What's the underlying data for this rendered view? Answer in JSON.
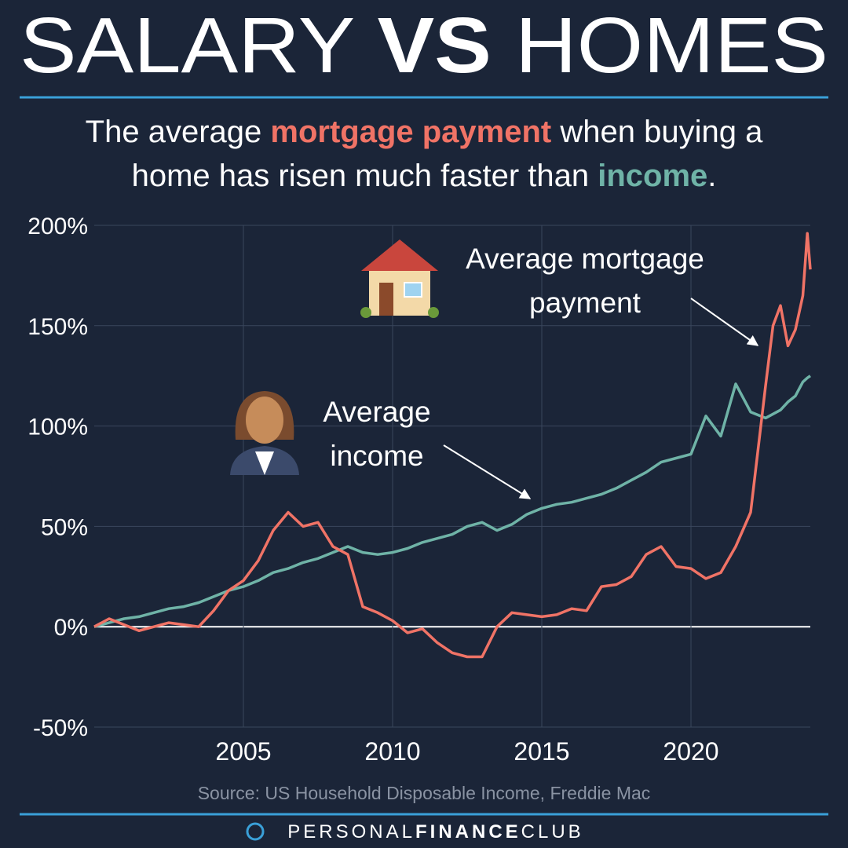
{
  "chart_data": {
    "type": "line",
    "title": [
      "SALARY",
      "VS",
      "HOMES"
    ],
    "subtitle": [
      {
        "text": "The average ",
        "color": "#ffffff"
      },
      {
        "text": "mortgage payment",
        "color": "#f07366"
      },
      {
        "text": " when buying a home has risen much faster than ",
        "color": "#ffffff"
      },
      {
        "text": "income",
        "color": "#6fb3a7"
      },
      {
        "text": ".",
        "color": "#ffffff"
      }
    ],
    "annotations": [
      "Average mortgage payment",
      "Average income"
    ],
    "source": "Source: US Household Disposable Income, Freddie Mac",
    "footer": [
      "PERSONAL",
      "FINANCE",
      "CLUB"
    ],
    "x": [
      2000,
      2000.5,
      2001,
      2001.5,
      2002,
      2002.5,
      2003,
      2003.5,
      2004,
      2004.5,
      2005,
      2005.5,
      2006,
      2006.5,
      2007,
      2007.5,
      2008,
      2008.5,
      2009,
      2009.5,
      2010,
      2010.5,
      2011,
      2011.5,
      2012,
      2012.5,
      2013,
      2013.5,
      2014,
      2014.5,
      2015,
      2015.5,
      2016,
      2016.5,
      2017,
      2017.5,
      2018,
      2018.5,
      2019,
      2019.5,
      2020,
      2020.5,
      2021,
      2021.5,
      2022,
      2022.5,
      2022.75,
      2023,
      2023.25,
      2023.5,
      2023.75,
      2023.9,
      2024
    ],
    "series": [
      {
        "name": "Average mortgage payment",
        "color": "#f07366",
        "values": [
          0,
          4,
          1,
          -2,
          0,
          2,
          1,
          0,
          8,
          18,
          23,
          33,
          48,
          57,
          50,
          52,
          40,
          36,
          10,
          7,
          3,
          -3,
          -1,
          -8,
          -13,
          -15,
          -15,
          0,
          7,
          6,
          5,
          6,
          9,
          8,
          20,
          21,
          25,
          36,
          40,
          30,
          29,
          24,
          27,
          40,
          57,
          120,
          150,
          160,
          140,
          148,
          165,
          196,
          178
        ]
      },
      {
        "name": "Average income",
        "color": "#6fb3a7",
        "values": [
          0,
          2,
          4,
          5,
          7,
          9,
          10,
          12,
          15,
          18,
          20,
          23,
          27,
          29,
          32,
          34,
          37,
          40,
          37,
          36,
          37,
          39,
          42,
          44,
          46,
          50,
          52,
          48,
          51,
          56,
          59,
          61,
          62,
          64,
          66,
          69,
          73,
          77,
          82,
          84,
          86,
          105,
          95,
          121,
          107,
          104,
          106,
          108,
          112,
          115,
          122,
          124,
          125
        ]
      }
    ],
    "xlim": [
      2000,
      2024
    ],
    "xticks": [
      2005,
      2010,
      2015,
      2020
    ],
    "ylim": [
      -50,
      200
    ],
    "yticks": [
      {
        "value": -50,
        "label": "-50%"
      },
      {
        "value": 0,
        "label": "0%"
      },
      {
        "value": 50,
        "label": "50%"
      },
      {
        "value": 100,
        "label": "100%"
      },
      {
        "value": 150,
        "label": "150%"
      },
      {
        "value": 200,
        "label": "200%"
      }
    ],
    "grid": true
  }
}
